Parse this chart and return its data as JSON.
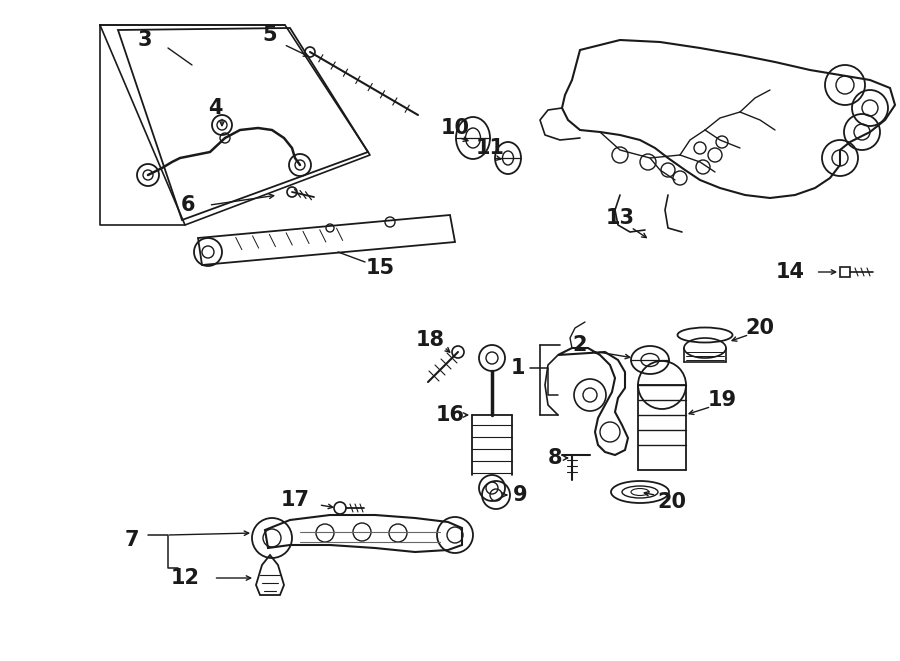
{
  "bg_color": "#ffffff",
  "line_color": "#1a1a1a",
  "figsize": [
    9.0,
    6.61
  ],
  "dpi": 100,
  "xlim": [
    0,
    900
  ],
  "ylim": [
    0,
    661
  ]
}
